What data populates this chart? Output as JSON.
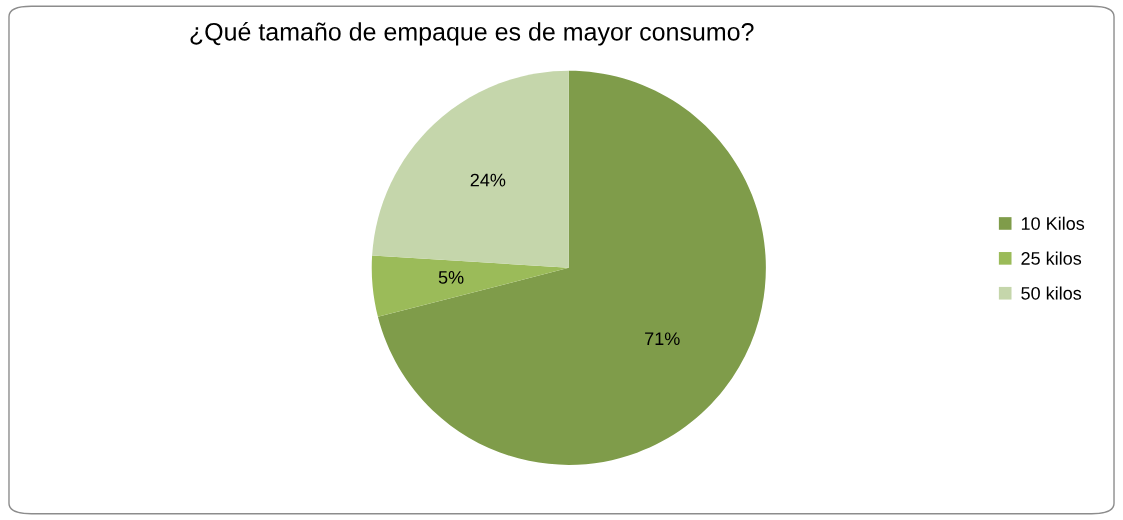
{
  "chart_data": {
    "type": "pie",
    "title": "¿Qué tamaño de empaque es de mayor consumo?",
    "categories": [
      "10 Kilos",
      "25 kilos",
      "50 kilos"
    ],
    "values": [
      71,
      5,
      24
    ],
    "colors": [
      "#7f9c4a",
      "#9bbb59",
      "#c5d6ab"
    ],
    "value_labels": [
      "71%",
      "5%",
      "24%"
    ],
    "legend": "right"
  }
}
